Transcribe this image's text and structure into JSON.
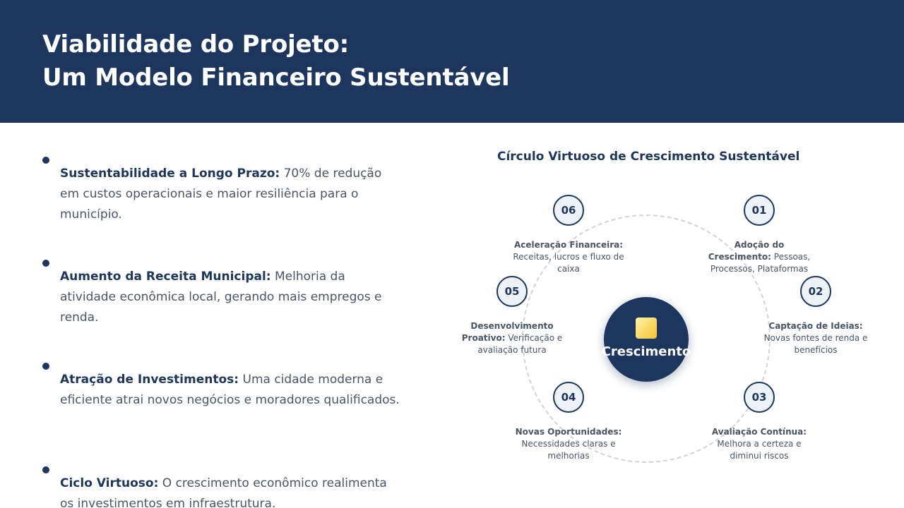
{
  "header": {
    "title_line1": "Viabilidade do Projeto:",
    "title_line2": "Um Modelo Financeiro Sustentável"
  },
  "bullets": [
    {
      "title": "Sustentabilidade a Longo Prazo:",
      "text": " 70% de redução em custos operacionais e maior resiliência para o município."
    },
    {
      "title": "Aumento da Receita Municipal:",
      "text": " Melhoria da atividade econômica local, gerando mais empregos e renda."
    },
    {
      "title": "Atração de Investimentos:",
      "text": " Uma cidade moderna e eficiente atrai novos negócios e moradores qualificados."
    },
    {
      "title": "Ciclo Virtuoso:",
      "text": " O crescimento econômico realimenta os investimentos em infraestrutura."
    }
  ],
  "cycle": {
    "title": "Círculo Virtuoso de Crescimento Sustentável",
    "center_label": "Crescimento",
    "steps": [
      {
        "number": "01",
        "title": "Adoção do Crescimento:",
        "text": " Pessoas, Processos, Plataformas"
      },
      {
        "number": "02",
        "title": "Captação de Ideias:",
        "text": " Novas fontes de renda e benefícios"
      },
      {
        "number": "03",
        "title": "Avaliação Contínua:",
        "text": " Melhora a certeza e diminui riscos"
      },
      {
        "number": "04",
        "title": "Novas Oportunidades:",
        "text": " Necessidades claras e melhorias"
      },
      {
        "number": "05",
        "title": "Desenvolvimento Proativo:",
        "text": " Verificação e avaliação futura"
      },
      {
        "number": "06",
        "title": "Aceleração Financeira:",
        "text": " Receitas, lucros e fluxo de caixa"
      }
    ]
  },
  "colors": {
    "primary": "#1c365e",
    "text": "#4a5568",
    "accent": "#f4c430"
  }
}
